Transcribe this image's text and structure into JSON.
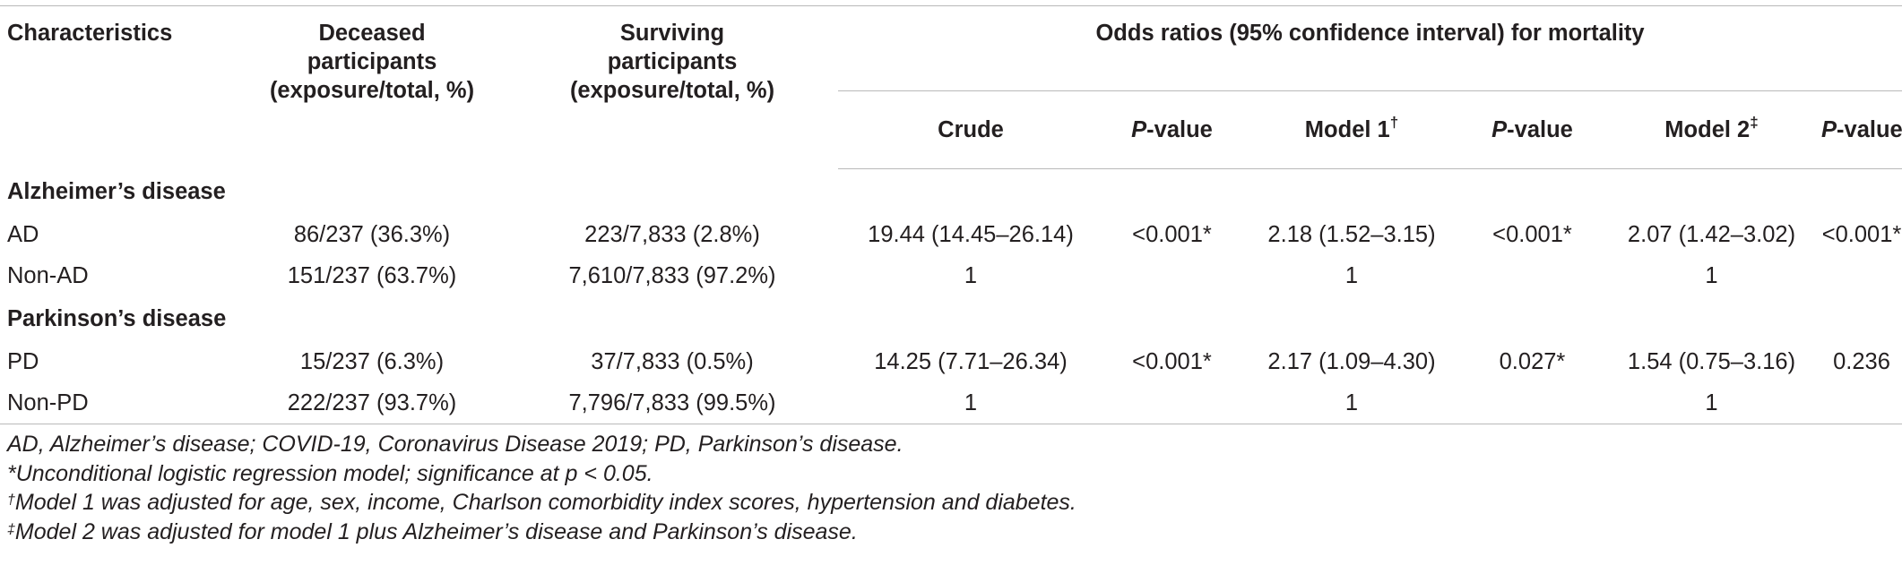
{
  "table": {
    "headers": {
      "characteristics": "Characteristics",
      "deceased_line1": "Deceased",
      "deceased_line2": "participants",
      "deceased_line3": "(exposure/total, %)",
      "surviving_line1": "Surviving",
      "surviving_line2": "participants",
      "surviving_line3": "(exposure/total, %)",
      "odds_group": "Odds ratios (95% confidence interval) for mortality",
      "crude": "Crude",
      "p_italic": "P",
      "p_rest": "-value",
      "model1": "Model 1",
      "model1_mark": "†",
      "model2": "Model 2",
      "model2_mark": "‡"
    },
    "sections": [
      {
        "title": "Alzheimer’s disease",
        "rows": [
          {
            "label": "AD",
            "deceased": "86/237 (36.3%)",
            "surviving": "223/7,833 (2.8%)",
            "crude": "19.44 (14.45–26.14)",
            "p_crude": "<0.001*",
            "model1": "2.18 (1.52–3.15)",
            "p_model1": "<0.001*",
            "model2": "2.07 (1.42–3.02)",
            "p_model2": "<0.001*"
          },
          {
            "label": "Non-AD",
            "deceased": "151/237 (63.7%)",
            "surviving": "7,610/7,833 (97.2%)",
            "crude": "1",
            "p_crude": "",
            "model1": "1",
            "p_model1": "",
            "model2": "1",
            "p_model2": ""
          }
        ]
      },
      {
        "title": "Parkinson’s disease",
        "rows": [
          {
            "label": "PD",
            "deceased": "15/237 (6.3%)",
            "surviving": "37/7,833 (0.5%)",
            "crude": "14.25 (7.71–26.34)",
            "p_crude": "<0.001*",
            "model1": "2.17 (1.09–4.30)",
            "p_model1": "0.027*",
            "model2": "1.54 (0.75–3.16)",
            "p_model2": "0.236"
          },
          {
            "label": "Non-PD",
            "deceased": "222/237 (93.7%)",
            "surviving": "7,796/7,833 (99.5%)",
            "crude": "1",
            "p_crude": "",
            "model1": "1",
            "p_model1": "",
            "model2": "1",
            "p_model2": ""
          }
        ]
      }
    ]
  },
  "footnotes": {
    "abbreviations": "AD, Alzheimer’s disease; COVID-19, Coronavirus Disease 2019; PD, Parkinson’s disease.",
    "note_star": "*Unconditional logistic regression model; significance at p < 0.05.",
    "dagger_mark": "†",
    "note_dagger": "Model 1 was adjusted for age, sex, income, Charlson comorbidity index scores, hypertension and diabetes.",
    "ddagger_mark": "‡",
    "note_ddagger": "Model 2 was adjusted for model 1 plus Alzheimer’s disease and Parkinson’s disease."
  }
}
